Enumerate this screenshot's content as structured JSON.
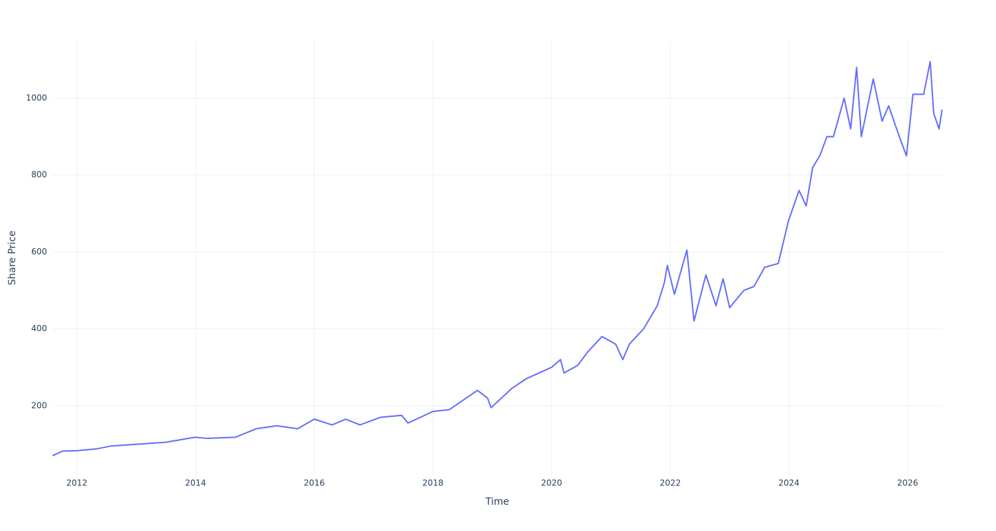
{
  "chart_data": {
    "type": "line",
    "x_label": "Time",
    "y_label": "Share Price",
    "x": [
      2011.59,
      2011.76,
      2012.0,
      2012.34,
      2012.57,
      2013.04,
      2013.5,
      2013.99,
      2014.2,
      2014.67,
      2015.02,
      2015.37,
      2015.72,
      2016.0,
      2016.3,
      2016.53,
      2016.77,
      2017.12,
      2017.47,
      2017.58,
      2018.0,
      2018.28,
      2018.75,
      2018.92,
      2018.98,
      2019.33,
      2019.57,
      2020.0,
      2020.15,
      2020.21,
      2020.44,
      2020.61,
      2020.85,
      2021.08,
      2021.2,
      2021.31,
      2021.55,
      2021.78,
      2021.9,
      2021.95,
      2022.07,
      2022.28,
      2022.4,
      2022.6,
      2022.77,
      2022.89,
      2023.0,
      2023.24,
      2023.41,
      2023.59,
      2023.82,
      2023.99,
      2024.17,
      2024.29,
      2024.4,
      2024.52,
      2024.64,
      2024.75,
      2024.93,
      2025.04,
      2025.14,
      2025.22,
      2025.42,
      2025.57,
      2025.68,
      2025.86,
      2025.98,
      2026.09,
      2026.27,
      2026.38,
      2026.44,
      2026.53,
      2026.58
    ],
    "values": [
      70,
      82,
      83,
      88,
      95,
      100,
      105,
      118,
      115,
      118,
      140,
      148,
      140,
      165,
      150,
      165,
      150,
      170,
      175,
      155,
      185,
      190,
      240,
      220,
      195,
      245,
      270,
      300,
      320,
      285,
      305,
      340,
      380,
      360,
      320,
      360,
      400,
      460,
      520,
      565,
      490,
      605,
      420,
      540,
      460,
      530,
      455,
      500,
      510,
      560,
      570,
      680,
      760,
      720,
      820,
      850,
      900,
      900,
      1000,
      920,
      1080,
      900,
      1050,
      940,
      980,
      900,
      850,
      1010,
      1010,
      1095,
      960,
      920,
      970
    ],
    "color": "#636efa",
    "xlim": [
      2011.59,
      2026.58
    ],
    "xticks": [
      2012,
      2014,
      2016,
      2018,
      2020,
      2022,
      2024,
      2026
    ],
    "ylim": [
      18,
      1151
    ],
    "yticks": [
      200,
      400,
      600,
      800,
      1000
    ],
    "grid": true
  }
}
